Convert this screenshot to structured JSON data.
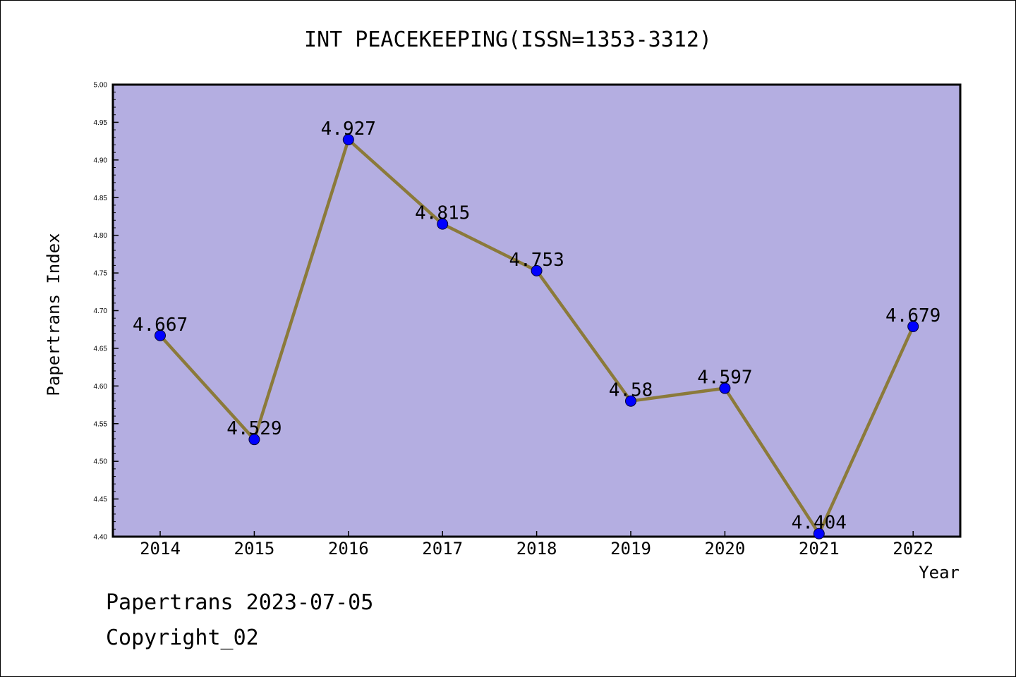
{
  "chart_data": {
    "type": "line",
    "title": "INT PEACEKEEPING(ISSN=1353-3312)",
    "xlabel": "Year",
    "ylabel": "Papertrans Index",
    "categories": [
      "2014",
      "2015",
      "2016",
      "2017",
      "2018",
      "2019",
      "2020",
      "2021",
      "2022"
    ],
    "values": [
      4.667,
      4.529,
      4.927,
      4.815,
      4.753,
      4.58,
      4.597,
      4.404,
      4.679
    ],
    "data_labels": [
      "4.667",
      "4.529",
      "4.927",
      "4.815",
      "4.753",
      "4.58",
      "4.597",
      "4.404",
      "4.679"
    ],
    "ylim": [
      4.4,
      5.0
    ],
    "yticks": [
      "4.40",
      "4.45",
      "4.50",
      "4.55",
      "4.60",
      "4.65",
      "4.70",
      "4.75",
      "4.80",
      "4.85",
      "4.90",
      "4.95",
      "5.00"
    ],
    "grid": false,
    "colors": {
      "plot_background": "#b4aee1",
      "line": "#8b7a3a",
      "marker": "#0000ff"
    }
  },
  "footer": {
    "source_line": "Papertrans 2023-07-05",
    "copyright": "Copyright_02"
  }
}
